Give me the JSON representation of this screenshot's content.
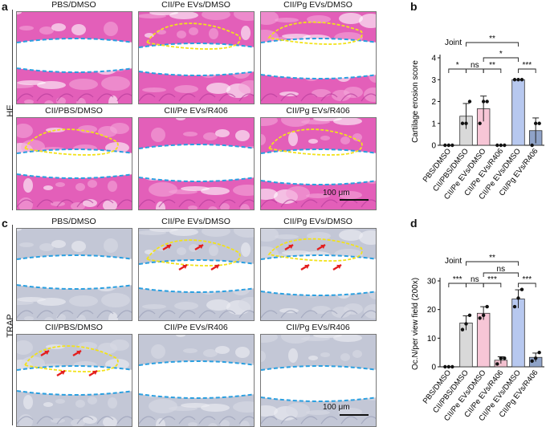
{
  "panels": {
    "a": {
      "letter": "a",
      "row_label": "HE",
      "images": [
        {
          "title": "PBS/DMSO"
        },
        {
          "title": "CII/Pe EVs/DMSO"
        },
        {
          "title": "CII/Pg EVs/DMSO"
        },
        {
          "title": "CII/PBS/DMSO"
        },
        {
          "title": "CII/Pe EVs/R406"
        },
        {
          "title": "CII/Pg EVs/R406"
        }
      ],
      "scale_bar": "100 μm",
      "stain": "#e04fb0"
    },
    "c": {
      "letter": "c",
      "row_label": "TRAP",
      "images": [
        {
          "title": "PBS/DMSO"
        },
        {
          "title": "CII/Pe EVs/DMSO"
        },
        {
          "title": "CII/Pg EVs/DMSO"
        },
        {
          "title": "CII/PBS/DMSO"
        },
        {
          "title": "CII/Pe EVs/R406"
        },
        {
          "title": "CII/Pg EVs/R406"
        }
      ],
      "scale_bar": "100 μm",
      "stain": "#b9bfd0"
    },
    "b": {
      "letter": "b"
    },
    "d": {
      "letter": "d"
    }
  },
  "chart_data": [
    {
      "type": "bar",
      "panel": "b",
      "title": "Joint",
      "ylabel": "Cartilage erosion score",
      "ylim": [
        0,
        4
      ],
      "yticks": [
        0,
        1,
        2,
        3,
        4
      ],
      "categories": [
        "PBS/DMSO",
        "CII/PBS/DMSO",
        "CII/Pe EVs/DMSO",
        "CII/Pe EVs/R406",
        "CII/Pe EVs/DMSO",
        "CII/Pg EVs/R406"
      ],
      "values": [
        0,
        1.33,
        1.67,
        0,
        3.0,
        0.67
      ],
      "errors": [
        0,
        0.58,
        0.58,
        0,
        0,
        0.58
      ],
      "points": [
        [
          0,
          0,
          0
        ],
        [
          1,
          1,
          2
        ],
        [
          1,
          2,
          2
        ],
        [
          0,
          0,
          0
        ],
        [
          3,
          3,
          3
        ],
        [
          0,
          1,
          1
        ]
      ],
      "colors": [
        "#ffffff",
        "#d9d9d9",
        "#f7c6d6",
        "#ffffff",
        "#b7c8ef",
        "#8fa3c8"
      ],
      "significance": [
        {
          "from": 0,
          "to": 1,
          "label": "*",
          "level": 1
        },
        {
          "from": 1,
          "to": 2,
          "label": "ns",
          "level": 1
        },
        {
          "from": 2,
          "to": 3,
          "label": "**",
          "level": 1
        },
        {
          "from": 4,
          "to": 5,
          "label": "***",
          "level": 1
        },
        {
          "from": 2,
          "to": 4,
          "label": "*",
          "level": 2
        },
        {
          "from": 1,
          "to": 4,
          "label": "**",
          "level": 3
        }
      ]
    },
    {
      "type": "bar",
      "panel": "d",
      "title": "Joint",
      "ylabel": "Oc.N/per view field (200x)",
      "ylim": [
        0,
        30
      ],
      "yticks": [
        0,
        10,
        20,
        30
      ],
      "categories": [
        "PBS/DMSO",
        "CII/PBS/DMSO",
        "CII/Pe EVs/DMSO",
        "CII/Pe EVs/R406",
        "CII/Pe EVs/DMSO",
        "CII/Pg EVs/R406"
      ],
      "values": [
        0,
        15.3,
        18.7,
        2.3,
        23.7,
        3.3
      ],
      "errors": [
        0,
        2.5,
        2.3,
        1.2,
        3.2,
        1.5
      ],
      "points": [
        [
          0,
          0,
          0
        ],
        [
          13,
          15,
          18
        ],
        [
          17,
          18,
          21
        ],
        [
          1,
          3,
          3
        ],
        [
          21,
          24,
          27
        ],
        [
          2,
          3,
          5
        ]
      ],
      "colors": [
        "#ffffff",
        "#d9d9d9",
        "#f7c6d6",
        "#f3c0cf",
        "#b7c8ef",
        "#8fa3c8"
      ],
      "significance": [
        {
          "from": 0,
          "to": 1,
          "label": "***",
          "level": 1
        },
        {
          "from": 1,
          "to": 2,
          "label": "ns",
          "level": 1
        },
        {
          "from": 2,
          "to": 3,
          "label": "***",
          "level": 1
        },
        {
          "from": 4,
          "to": 5,
          "label": "***",
          "level": 1
        },
        {
          "from": 2,
          "to": 4,
          "label": "ns",
          "level": 2
        },
        {
          "from": 1,
          "to": 4,
          "label": "**",
          "level": 3
        }
      ]
    }
  ]
}
